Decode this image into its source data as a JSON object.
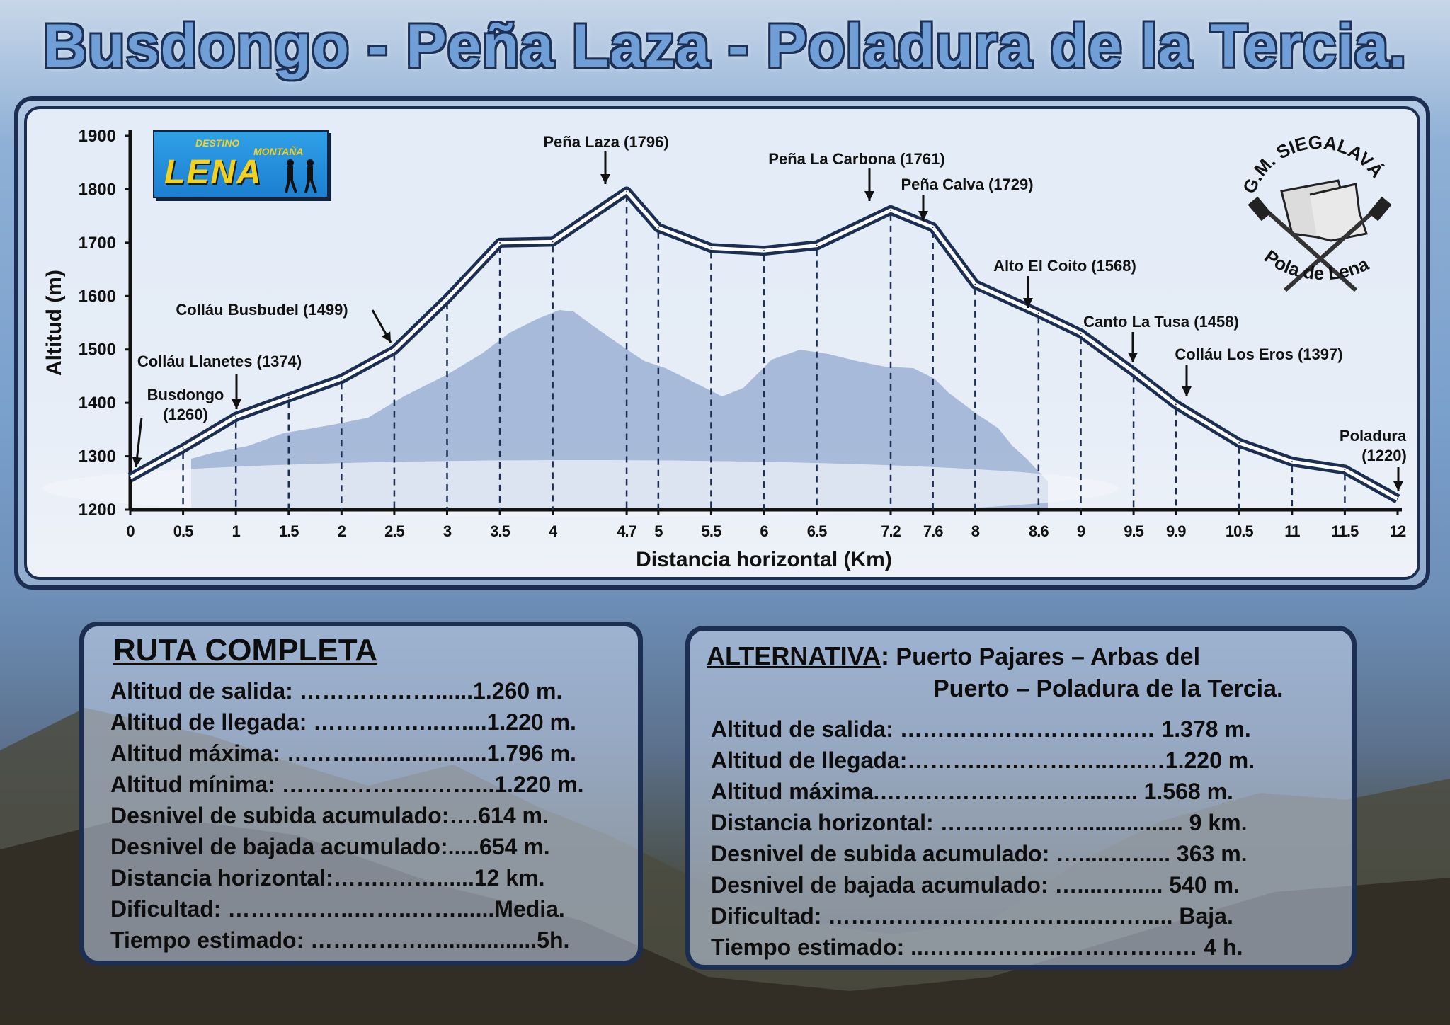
{
  "title": "Busdongo - Peña Laza - Poladura de la Tercia.",
  "logo_lena": {
    "top": "DESTINO",
    "right": "MONTAÑA",
    "word": "LENA"
  },
  "logo_club": {
    "top": "G.M. SIEGALAVÁ",
    "bottom": "Pola de Lena"
  },
  "chart_data": {
    "type": "line",
    "xlabel": "Distancia horizontal (Km)",
    "ylabel": "Altitud (m)",
    "ylim": [
      1200,
      1900
    ],
    "yticks": [
      1200,
      1300,
      1400,
      1500,
      1600,
      1700,
      1800,
      1900
    ],
    "xticks": [
      "0",
      "0.5",
      "1",
      "1.5",
      "2",
      "2.5",
      "3",
      "3.5",
      "4",
      "4.7",
      "5",
      "5.5",
      "6",
      "6.5",
      "7.2",
      "7.6",
      "8",
      "8.6",
      "9",
      "9.5",
      "9.9",
      "10.5",
      "11",
      "11.5",
      "12"
    ],
    "x": [
      0,
      0.5,
      1,
      1.5,
      2,
      2.5,
      3,
      3.5,
      4,
      4.7,
      5,
      5.5,
      6,
      6.5,
      7.2,
      7.6,
      8,
      8.6,
      9,
      9.5,
      9.9,
      10.5,
      11,
      11.5,
      12
    ],
    "y": [
      1260,
      1315,
      1374,
      1410,
      1445,
      1499,
      1595,
      1700,
      1702,
      1796,
      1728,
      1690,
      1685,
      1695,
      1761,
      1729,
      1622,
      1568,
      1530,
      1458,
      1397,
      1325,
      1290,
      1275,
      1220
    ],
    "annotations": [
      {
        "label": "Busdongo",
        "sub": "(1260)",
        "x": 0,
        "y": 1260
      },
      {
        "label": "Colláu Llanetes (1374)",
        "x": 1,
        "y": 1374
      },
      {
        "label": "Colláu Busbudel (1499)",
        "x": 2.5,
        "y": 1499
      },
      {
        "label": "Peña Laza (1796)",
        "x": 4.7,
        "y": 1796
      },
      {
        "label": "Peña La Carbona (1761)",
        "x": 7.2,
        "y": 1761
      },
      {
        "label": "Peña Calva (1729)",
        "x": 7.6,
        "y": 1729
      },
      {
        "label": "Alto El Coito (1568)",
        "x": 8.6,
        "y": 1568
      },
      {
        "label": "Canto La Tusa (1458)",
        "x": 9.5,
        "y": 1458
      },
      {
        "label": "Colláu Los Eros (1397)",
        "x": 9.9,
        "y": 1397
      },
      {
        "label": "Poladura",
        "sub": "(1220)",
        "x": 12,
        "y": 1220
      }
    ],
    "grid": false,
    "colors": {
      "line": "#1c2f52",
      "fill": "#ffffff",
      "drop": "#1c2f52"
    }
  },
  "ruta": {
    "title": "RUTA  COMPLETA",
    "rows": [
      "Altitud de salida: ………………......1.260 m.",
      "Altitud de llegada: ……………..…....1.220 m.",
      "Altitud máxima: ……….....................1.796 m.",
      "Altitud mínima: ………………..……...1.220 m.",
      "Desnivel de subida acumulado:….614 m.",
      "Desnivel de bajada acumulado:.....654 m.",
      "Distancia horizontal:……..……......12 km.",
      "Dificultad: ……………..……..……......Media.",
      "Tiempo estimado: ……………..................5h."
    ]
  },
  "alternativa": {
    "label": "ALTERNATIVA",
    "colon": ":",
    "line1": " Puerto Pajares – Arbas del",
    "line2": "Puerto – Poladura de la Tercia.",
    "rows": [
      "Altitud de salida: ………………………….… 1.378 m.",
      "Altitud de llegada:……….……………..…..…1.220 m.",
      "Altitud máxima.………………………...….. 1.568 m.",
      "Distancia horizontal: ………………................. 9 km.",
      "Desnivel de subida acumulado: ….....…...... 363 m.",
      "Desnivel de bajada acumulado: …....…...... 540 m.",
      "Dificultad: ……………………………...……..... Baja.",
      "Tiempo estimado: ...……………...……………… 4 h."
    ]
  }
}
